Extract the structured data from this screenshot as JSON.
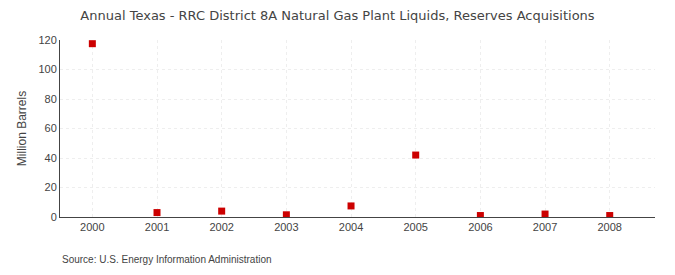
{
  "chart_data": {
    "type": "scatter",
    "title": "Annual Texas - RRC District 8A Natural Gas Plant Liquids, Reserves Acquisitions",
    "ylabel": "Million Barrels",
    "annotation": "Source: U.S. Energy Information Administration",
    "x": [
      2000,
      2001,
      2002,
      2003,
      2004,
      2005,
      2006,
      2007,
      2008
    ],
    "values": [
      117.5,
      3.0,
      4.0,
      1.5,
      7.5,
      42.0,
      1.0,
      2.0,
      1.0
    ],
    "color": "#cc0000",
    "marker": "square",
    "xlim": [
      1999.5,
      2008.7
    ],
    "ylim": [
      0,
      120
    ],
    "xticks": [
      2000,
      2001,
      2002,
      2003,
      2004,
      2005,
      2006,
      2007,
      2008
    ],
    "yticks": [
      0,
      20,
      40,
      60,
      80,
      100,
      120
    ],
    "grid": true
  }
}
